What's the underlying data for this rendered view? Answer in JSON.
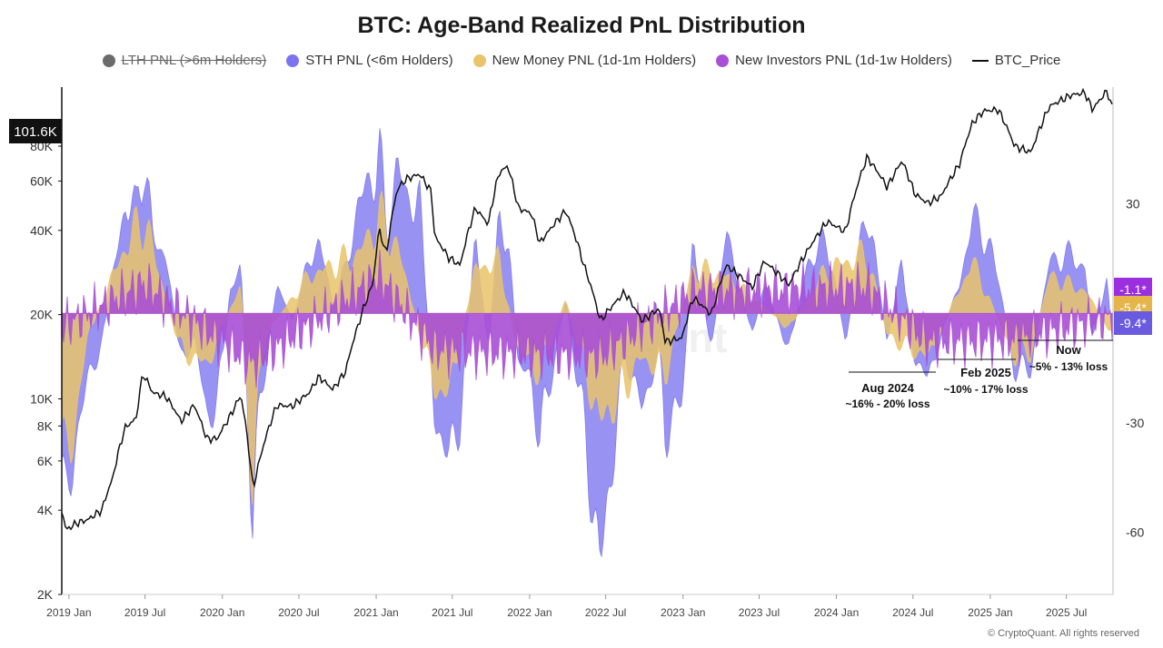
{
  "chart_data": {
    "type": "area",
    "title": "BTC: Age-Band Realized PnL Distribution",
    "x_ticks": [
      "2019 Jan",
      "2019 Jul",
      "2020 Jan",
      "2020 Jul",
      "2021 Jan",
      "2021 Jul",
      "2022 Jan",
      "2022 Jul",
      "2023 Jan",
      "2023 Jul",
      "2024 Jan",
      "2024 Jul",
      "2025 Jan",
      "2025 Jul"
    ],
    "x_range": [
      "2018-12-15",
      "2025-10-20"
    ],
    "y_left": {
      "scale": "log",
      "ticks": [
        "2K",
        "4K",
        "6K",
        "8K",
        "10K",
        "20K",
        "40K",
        "60K",
        "80K"
      ],
      "tick_values": [
        2000,
        4000,
        6000,
        8000,
        10000,
        20000,
        40000,
        60000,
        80000
      ],
      "range": [
        2000,
        130000
      ]
    },
    "y_right": {
      "ticks": [
        "30",
        "-30",
        "-60"
      ],
      "tick_values": [
        30,
        -30,
        -60
      ],
      "range": [
        -77,
        62
      ]
    },
    "price_badge": "101.6K",
    "value_badges": [
      {
        "text": "-1.1*",
        "color": "#9b2fe0"
      },
      {
        "text": "-5.4*",
        "color": "#e6b54a"
      },
      {
        "text": "-9.4*",
        "color": "#6a5ae0"
      }
    ],
    "legend": [
      {
        "name": "LTH PNL (>6m Holders)",
        "color": "#6b6b6b",
        "hidden": true
      },
      {
        "name": "STH PNL (<6m Holders)",
        "color": "#7b74f0",
        "hidden": false
      },
      {
        "name": "New Money PNL (1d-1m Holders)",
        "color": "#e9c46a",
        "hidden": false
      },
      {
        "name": "New Investors PNL (1d-1w Holders)",
        "color": "#a94fd6",
        "hidden": false
      },
      {
        "name": "BTC_Price",
        "color": "#111111",
        "hidden": false,
        "kind": "line"
      }
    ],
    "annotations": [
      {
        "title": "Aug 2024",
        "text": "~16% - 20% loss"
      },
      {
        "title": "Feb 2025",
        "text": "~10% - 17% loss"
      },
      {
        "title": "Now",
        "text": "~5% - 13% loss"
      }
    ],
    "watermark": "CryptoQuant",
    "series": [
      {
        "name": "BTC_Price",
        "points": [
          [
            "2018-12-15",
            4000
          ],
          [
            "2018-12-25",
            3400
          ],
          [
            "2019-01-20",
            3600
          ],
          [
            "2019-02-15",
            3700
          ],
          [
            "2019-03-20",
            4000
          ],
          [
            "2019-04-15",
            5200
          ],
          [
            "2019-05-15",
            7900
          ],
          [
            "2019-06-10",
            8500
          ],
          [
            "2019-06-26",
            12300
          ],
          [
            "2019-07-20",
            10500
          ],
          [
            "2019-08-20",
            10200
          ],
          [
            "2019-09-25",
            8300
          ],
          [
            "2019-10-26",
            9500
          ],
          [
            "2019-11-25",
            7200
          ],
          [
            "2019-12-20",
            7200
          ],
          [
            "2020-01-20",
            8700
          ],
          [
            "2020-02-14",
            10300
          ],
          [
            "2020-03-12",
            5000
          ],
          [
            "2020-03-16",
            4900
          ],
          [
            "2020-04-10",
            7000
          ],
          [
            "2020-05-10",
            9500
          ],
          [
            "2020-06-15",
            9400
          ],
          [
            "2020-07-25",
            10500
          ],
          [
            "2020-08-18",
            12000
          ],
          [
            "2020-09-20",
            10800
          ],
          [
            "2020-10-20",
            12500
          ],
          [
            "2020-11-20",
            18500
          ],
          [
            "2020-12-25",
            26000
          ],
          [
            "2021-01-08",
            40500
          ],
          [
            "2021-01-25",
            32500
          ],
          [
            "2021-02-20",
            56000
          ],
          [
            "2021-03-13",
            61000
          ],
          [
            "2021-04-14",
            63500
          ],
          [
            "2021-05-12",
            55000
          ],
          [
            "2021-05-20",
            38000
          ],
          [
            "2021-06-22",
            32000
          ],
          [
            "2021-07-20",
            30000
          ],
          [
            "2021-08-25",
            48000
          ],
          [
            "2021-09-25",
            42000
          ],
          [
            "2021-10-20",
            64000
          ],
          [
            "2021-11-10",
            68000
          ],
          [
            "2021-12-05",
            48000
          ],
          [
            "2022-01-05",
            46000
          ],
          [
            "2022-01-25",
            36000
          ],
          [
            "2022-03-28",
            47000
          ],
          [
            "2022-05-10",
            30000
          ],
          [
            "2022-06-18",
            19000
          ],
          [
            "2022-08-15",
            24000
          ],
          [
            "2022-09-25",
            19000
          ],
          [
            "2022-11-05",
            21000
          ],
          [
            "2022-11-20",
            16000
          ],
          [
            "2022-12-30",
            16500
          ],
          [
            "2023-01-25",
            23000
          ],
          [
            "2023-03-10",
            20000
          ],
          [
            "2023-04-14",
            30000
          ],
          [
            "2023-06-15",
            25000
          ],
          [
            "2023-07-14",
            31000
          ],
          [
            "2023-09-10",
            25500
          ],
          [
            "2023-10-25",
            34000
          ],
          [
            "2023-12-10",
            43000
          ],
          [
            "2024-01-23",
            39500
          ],
          [
            "2024-03-14",
            73000
          ],
          [
            "2024-05-01",
            57000
          ],
          [
            "2024-06-05",
            71000
          ],
          [
            "2024-07-05",
            54000
          ],
          [
            "2024-08-05",
            50000
          ],
          [
            "2024-09-06",
            53000
          ],
          [
            "2024-10-20",
            69000
          ],
          [
            "2024-11-20",
            97000
          ],
          [
            "2024-12-17",
            107000
          ],
          [
            "2025-01-20",
            108000
          ],
          [
            "2025-02-28",
            80000
          ],
          [
            "2025-04-08",
            76000
          ],
          [
            "2025-05-22",
            111000
          ],
          [
            "2025-07-14",
            122000
          ],
          [
            "2025-08-14",
            124000
          ],
          [
            "2025-09-01",
            108000
          ],
          [
            "2025-10-06",
            126000
          ],
          [
            "2025-10-20",
            107000
          ]
        ]
      },
      {
        "name": "STH PNL (<6m Holders)",
        "points": [
          [
            "2018-12-15",
            -40
          ],
          [
            "2018-12-25",
            -58
          ],
          [
            "2019-01-15",
            -35
          ],
          [
            "2019-02-15",
            -18
          ],
          [
            "2019-03-20",
            -8
          ],
          [
            "2019-04-15",
            10
          ],
          [
            "2019-05-15",
            30
          ],
          [
            "2019-06-10",
            28
          ],
          [
            "2019-06-28",
            44
          ],
          [
            "2019-07-20",
            20
          ],
          [
            "2019-08-20",
            16
          ],
          [
            "2019-09-25",
            -14
          ],
          [
            "2019-10-26",
            -6
          ],
          [
            "2019-11-25",
            -28
          ],
          [
            "2019-12-20",
            -24
          ],
          [
            "2020-01-20",
            6
          ],
          [
            "2020-02-14",
            14
          ],
          [
            "2020-03-12",
            -55
          ],
          [
            "2020-03-20",
            -40
          ],
          [
            "2020-04-10",
            -16
          ],
          [
            "2020-05-10",
            8
          ],
          [
            "2020-06-15",
            -2
          ],
          [
            "2020-07-25",
            14
          ],
          [
            "2020-08-18",
            20
          ],
          [
            "2020-09-20",
            2
          ],
          [
            "2020-10-20",
            12
          ],
          [
            "2020-11-20",
            30
          ],
          [
            "2020-12-25",
            38
          ],
          [
            "2021-01-08",
            45
          ],
          [
            "2021-01-25",
            22
          ],
          [
            "2021-02-20",
            40
          ],
          [
            "2021-03-13",
            32
          ],
          [
            "2021-04-14",
            30
          ],
          [
            "2021-05-20",
            -28
          ],
          [
            "2021-06-22",
            -40
          ],
          [
            "2021-07-20",
            -28
          ],
          [
            "2021-08-25",
            20
          ],
          [
            "2021-09-25",
            -10
          ],
          [
            "2021-10-20",
            24
          ],
          [
            "2021-11-10",
            22
          ],
          [
            "2021-12-05",
            -14
          ],
          [
            "2022-01-05",
            -18
          ],
          [
            "2022-01-25",
            -34
          ],
          [
            "2022-03-28",
            4
          ],
          [
            "2022-05-10",
            -30
          ],
          [
            "2022-06-18",
            -70
          ],
          [
            "2022-08-15",
            -10
          ],
          [
            "2022-09-25",
            -26
          ],
          [
            "2022-11-05",
            -10
          ],
          [
            "2022-11-20",
            -32
          ],
          [
            "2022-12-30",
            -24
          ],
          [
            "2023-01-25",
            20
          ],
          [
            "2023-03-10",
            -10
          ],
          [
            "2023-04-14",
            22
          ],
          [
            "2023-06-15",
            -6
          ],
          [
            "2023-07-14",
            8
          ],
          [
            "2023-09-10",
            -10
          ],
          [
            "2023-10-25",
            14
          ],
          [
            "2023-12-10",
            20
          ],
          [
            "2024-01-23",
            -8
          ],
          [
            "2024-03-14",
            30
          ],
          [
            "2024-05-01",
            -8
          ],
          [
            "2024-06-05",
            14
          ],
          [
            "2024-07-05",
            -12
          ],
          [
            "2024-08-05",
            -18
          ],
          [
            "2024-09-06",
            -6
          ],
          [
            "2024-10-20",
            8
          ],
          [
            "2024-11-20",
            26
          ],
          [
            "2024-12-17",
            22
          ],
          [
            "2025-01-20",
            10
          ],
          [
            "2025-02-28",
            -16
          ],
          [
            "2025-04-08",
            -14
          ],
          [
            "2025-05-22",
            14
          ],
          [
            "2025-07-14",
            16
          ],
          [
            "2025-08-14",
            12
          ],
          [
            "2025-09-01",
            -6
          ],
          [
            "2025-10-06",
            8
          ],
          [
            "2025-10-20",
            -9.4
          ]
        ]
      },
      {
        "name": "New Money PNL (1d-1m Holders)",
        "points": [
          [
            "2018-12-15",
            -30
          ],
          [
            "2018-12-25",
            -45
          ],
          [
            "2019-02-15",
            -6
          ],
          [
            "2019-04-15",
            10
          ],
          [
            "2019-05-15",
            18
          ],
          [
            "2019-06-28",
            26
          ],
          [
            "2019-08-20",
            4
          ],
          [
            "2019-09-25",
            -10
          ],
          [
            "2019-11-25",
            -14
          ],
          [
            "2020-02-14",
            8
          ],
          [
            "2020-03-12",
            -45
          ],
          [
            "2020-04-10",
            -6
          ],
          [
            "2020-07-25",
            10
          ],
          [
            "2020-11-20",
            16
          ],
          [
            "2021-01-08",
            26
          ],
          [
            "2021-02-20",
            18
          ],
          [
            "2021-05-20",
            -20
          ],
          [
            "2021-06-22",
            -22
          ],
          [
            "2021-08-25",
            12
          ],
          [
            "2021-10-20",
            14
          ],
          [
            "2021-12-05",
            -10
          ],
          [
            "2022-01-25",
            -16
          ],
          [
            "2022-03-28",
            4
          ],
          [
            "2022-06-18",
            -30
          ],
          [
            "2022-09-25",
            -12
          ],
          [
            "2022-11-20",
            -16
          ],
          [
            "2023-01-25",
            12
          ],
          [
            "2023-04-14",
            10
          ],
          [
            "2023-09-10",
            -4
          ],
          [
            "2023-12-10",
            12
          ],
          [
            "2024-03-14",
            16
          ],
          [
            "2024-05-01",
            -6
          ],
          [
            "2024-08-05",
            -12
          ],
          [
            "2024-11-20",
            14
          ],
          [
            "2025-02-28",
            -12
          ],
          [
            "2025-04-08",
            -10
          ],
          [
            "2025-05-22",
            10
          ],
          [
            "2025-08-14",
            6
          ],
          [
            "2025-10-20",
            -5.4
          ]
        ]
      },
      {
        "name": "New Investors PNL (1d-1w Holders)",
        "points": [
          [
            "2018-12-15",
            -4
          ],
          [
            "2019-06-28",
            8
          ],
          [
            "2020-03-12",
            -14
          ],
          [
            "2021-01-08",
            10
          ],
          [
            "2021-05-20",
            -10
          ],
          [
            "2022-06-18",
            -12
          ],
          [
            "2023-01-25",
            6
          ],
          [
            "2024-03-14",
            7
          ],
          [
            "2024-08-05",
            -8
          ],
          [
            "2025-02-28",
            -7
          ],
          [
            "2025-10-20",
            -1.1
          ]
        ],
        "amplitude": 8
      }
    ]
  }
}
